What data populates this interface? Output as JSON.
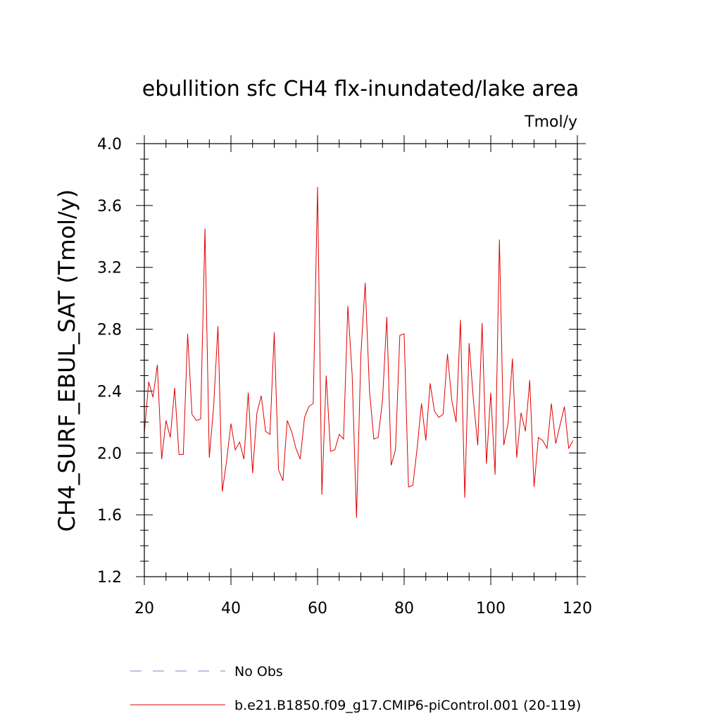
{
  "chart_data": {
    "type": "line",
    "title": "ebullition sfc CH4 flx-inundated/lake area",
    "units_label": "Tmol/y",
    "ylabel": "CH4_SURF_EBUL_SAT  (Tmol/y)",
    "xlabel": "",
    "xlim": [
      20,
      120
    ],
    "ylim": [
      1.2,
      4.0
    ],
    "x_ticks": [
      20,
      40,
      60,
      80,
      100,
      120
    ],
    "x_tick_labels": [
      "20",
      "40",
      "60",
      "80",
      "100",
      "120"
    ],
    "y_ticks": [
      1.2,
      1.6,
      2.0,
      2.4,
      2.8,
      3.2,
      3.6,
      4.0
    ],
    "y_tick_labels": [
      "1.2",
      "1.6",
      "2.0",
      "2.4",
      "2.8",
      "3.2",
      "3.6",
      "4.0"
    ],
    "legend_position": "bottom",
    "series": [
      {
        "name": "No Obs",
        "color": "#8080d0",
        "style": "dashed",
        "x": [],
        "values": []
      },
      {
        "name": "b.e21.B1850.f09_g17.CMIP6-piControl.001 (20-119)",
        "color": "#e00000",
        "style": "solid",
        "x": [
          20,
          21,
          22,
          23,
          24,
          25,
          26,
          27,
          28,
          29,
          30,
          31,
          32,
          33,
          34,
          35,
          36,
          37,
          38,
          39,
          40,
          41,
          42,
          43,
          44,
          45,
          46,
          47,
          48,
          49,
          50,
          51,
          52,
          53,
          54,
          55,
          56,
          57,
          58,
          59,
          60,
          61,
          62,
          63,
          64,
          65,
          66,
          67,
          68,
          69,
          70,
          71,
          72,
          73,
          74,
          75,
          76,
          77,
          78,
          79,
          80,
          81,
          82,
          83,
          84,
          85,
          86,
          87,
          88,
          89,
          90,
          91,
          92,
          93,
          94,
          95,
          96,
          97,
          98,
          99,
          100,
          101,
          102,
          103,
          104,
          105,
          106,
          107,
          108,
          109,
          110,
          111,
          112,
          113,
          114,
          115,
          116,
          117,
          118,
          119
        ],
        "values": [
          2.13,
          2.46,
          2.36,
          2.57,
          1.96,
          2.21,
          2.1,
          2.42,
          1.99,
          1.99,
          2.77,
          2.25,
          2.21,
          2.22,
          3.45,
          1.97,
          2.3,
          2.82,
          1.75,
          1.95,
          2.19,
          2.02,
          2.07,
          1.96,
          2.39,
          1.87,
          2.26,
          2.37,
          2.14,
          2.12,
          2.78,
          1.89,
          1.82,
          2.21,
          2.14,
          2.03,
          1.96,
          2.23,
          2.3,
          2.32,
          3.72,
          1.73,
          2.5,
          2.01,
          2.02,
          2.12,
          2.09,
          2.95,
          2.5,
          1.58,
          2.63,
          3.1,
          2.4,
          2.09,
          2.1,
          2.34,
          2.88,
          1.92,
          2.02,
          2.76,
          2.77,
          1.78,
          1.79,
          2.03,
          2.32,
          2.08,
          2.45,
          2.27,
          2.23,
          2.25,
          2.64,
          2.34,
          2.2,
          2.86,
          1.71,
          2.71,
          2.34,
          2.05,
          2.84,
          1.93,
          2.39,
          1.86,
          3.38,
          2.05,
          2.19,
          2.61,
          1.97,
          2.26,
          2.14,
          2.47,
          1.78,
          2.1,
          2.08,
          2.03,
          2.32,
          2.06,
          2.18,
          2.3,
          2.03,
          2.08
        ]
      }
    ]
  }
}
